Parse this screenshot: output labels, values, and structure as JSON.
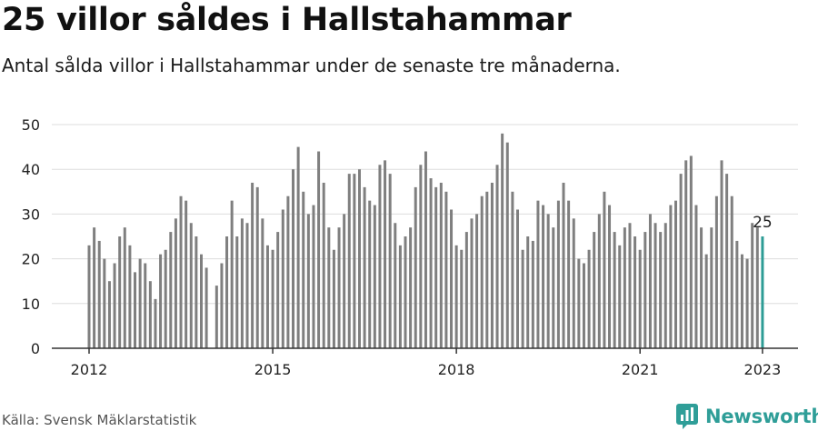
{
  "header": {
    "title": "25 villor såldes i Hallstahammar",
    "subtitle": "Antal sålda villor i Hallstahammar under de senaste tre månaderna."
  },
  "footer": {
    "source": "Källa: Svensk Mäklarstatistik",
    "brand": "Newsworthy",
    "brand_icon": "newsworthy-logo-icon"
  },
  "colors": {
    "bar": "#7f7f7f",
    "highlight": "#2e9c95",
    "grid": "#dddddd",
    "axis": "#333333",
    "brand": "#2f9e98"
  },
  "chart_data": {
    "type": "bar",
    "title": "25 villor såldes i Hallstahammar",
    "subtitle": "Antal sålda villor i Hallstahammar under de senaste tre månaderna.",
    "xlabel": "",
    "ylabel": "",
    "x_start": "2012-01",
    "x_interval": "month",
    "xticks": [
      "2012",
      "2015",
      "2018",
      "2021",
      "2023"
    ],
    "yticks": [
      0,
      10,
      20,
      30,
      40,
      50
    ],
    "ylim": [
      0,
      50
    ],
    "grid": true,
    "highlight_last": true,
    "last_value_label": "25",
    "values": [
      23,
      27,
      24,
      20,
      15,
      19,
      25,
      27,
      23,
      17,
      20,
      19,
      15,
      11,
      21,
      22,
      26,
      29,
      34,
      33,
      28,
      25,
      21,
      18,
      null,
      14,
      19,
      25,
      33,
      25,
      29,
      28,
      37,
      36,
      29,
      23,
      22,
      26,
      31,
      34,
      40,
      45,
      35,
      30,
      32,
      44,
      37,
      27,
      22,
      27,
      30,
      39,
      39,
      40,
      36,
      33,
      32,
      41,
      42,
      39,
      28,
      23,
      25,
      27,
      36,
      41,
      44,
      38,
      36,
      37,
      35,
      31,
      23,
      22,
      26,
      29,
      30,
      34,
      35,
      37,
      41,
      48,
      46,
      35,
      31,
      22,
      25,
      24,
      33,
      32,
      30,
      27,
      33,
      37,
      33,
      29,
      20,
      19,
      22,
      26,
      30,
      35,
      32,
      26,
      23,
      27,
      28,
      25,
      22,
      26,
      30,
      28,
      26,
      28,
      32,
      33,
      39,
      42,
      43,
      32,
      27,
      21,
      27,
      34,
      42,
      39,
      34,
      24,
      21,
      20,
      28,
      27,
      25
    ]
  }
}
